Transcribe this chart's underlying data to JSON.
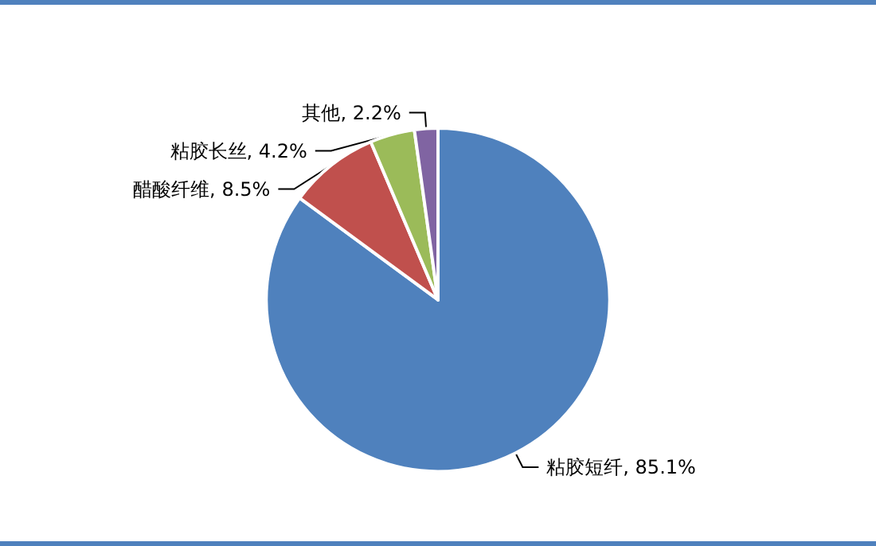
{
  "chart_data": {
    "type": "pie",
    "categories": [
      "粘胶短纤",
      "醋酸纤维",
      "粘胶长丝",
      "其他"
    ],
    "values": [
      85.1,
      8.5,
      4.2,
      2.2
    ],
    "colors": [
      "#4f81bd",
      "#c0504d",
      "#9bbb59",
      "#8064a2"
    ],
    "value_labels": [
      "85.1%",
      "8.5%",
      "4.2%",
      "2.2%"
    ],
    "legend": false
  }
}
